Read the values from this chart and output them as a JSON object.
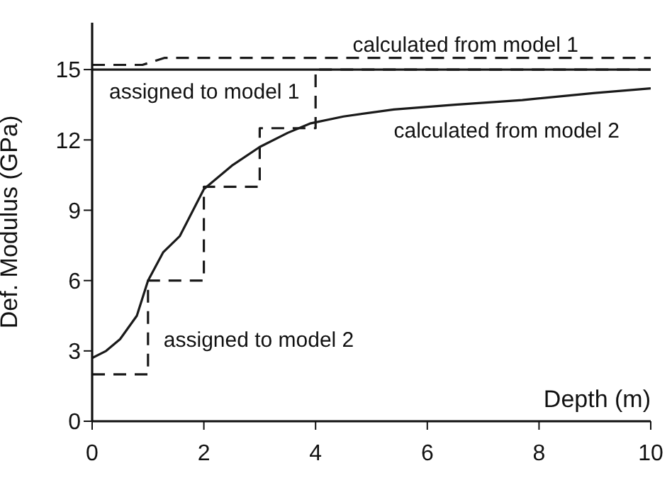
{
  "chart_data": {
    "type": "line",
    "xlabel": "Depth (m)",
    "ylabel": "Def. Modulus (GPa)",
    "xlim": [
      0,
      10
    ],
    "xticks": [
      0,
      2,
      4,
      6,
      8,
      10
    ],
    "ylim": [
      0,
      17
    ],
    "yticks": [
      0,
      3,
      6,
      9,
      12,
      15
    ],
    "grid": false,
    "marker": "none",
    "series": [
      {
        "name": "calculated from model 1",
        "color": "#1a1a1a",
        "line_style": "dashed",
        "x": [
          0,
          0.9,
          1.3,
          10
        ],
        "values": [
          15.2,
          15.2,
          15.5,
          15.5
        ]
      },
      {
        "name": "assigned to model 1",
        "color": "#1a1a1a",
        "line_style": "solid",
        "x": [
          0,
          10
        ],
        "values": [
          15,
          15
        ]
      },
      {
        "name": "calculated from model 2",
        "color": "#1a1a1a",
        "line_style": "solid",
        "x": [
          0,
          0.25,
          0.5,
          0.8,
          1,
          1.27,
          1.57,
          2,
          2.5,
          3,
          3.5,
          3.9,
          4.5,
          5.4,
          6.5,
          7.7,
          9,
          10
        ],
        "values": [
          2.7,
          3.0,
          3.5,
          4.5,
          6.0,
          7.2,
          7.9,
          9.9,
          10.9,
          11.7,
          12.3,
          12.7,
          13.0,
          13.3,
          13.5,
          13.7,
          14.0,
          14.2
        ]
      },
      {
        "name": "assigned to model 2",
        "color": "#1a1a1a",
        "line_style": "dashed",
        "x": [
          0,
          1,
          1,
          2,
          2,
          3,
          3,
          4,
          4,
          10
        ],
        "values": [
          2,
          2,
          6,
          6,
          10,
          10,
          12.5,
          12.5,
          15,
          15
        ]
      }
    ]
  }
}
